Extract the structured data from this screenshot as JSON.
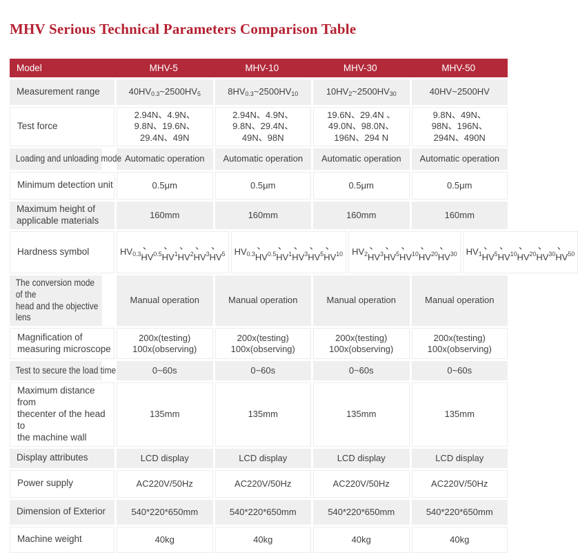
{
  "title": "MHV Serious Technical Parameters Comparison Table",
  "colors": {
    "title_red": "#b51f30",
    "header_red": "#b22a3a",
    "row_gray": "#efefef",
    "text": "#3f3f3f"
  },
  "table": {
    "header": [
      "Model",
      "MHV-5",
      "MHV-10",
      "MHV-30",
      "MHV-50"
    ],
    "rows": [
      {
        "label": "Measurement range",
        "values": [
          "40HV{0.3}~2500HV{5}",
          "8HV{0.3}~2500HV{10}",
          "10HV{2}~2500HV{30}",
          "40HV~2500HV"
        ]
      },
      {
        "label": "Test force",
        "values": [
          "2.94N、4.9N、\n9.8N、19.6N、\n29.4N、49N",
          "2.94N、4.9N、\n9.8N、29.4N、\n49N、98N",
          "19.6N、29.4N 、\n49.0N、98.0N、\n196N、294 N",
          "9.8N、49N、\n98N、196N、\n294N、490N"
        ]
      },
      {
        "label": "Loading and unloading mode",
        "values": [
          "Automatic operation",
          "Automatic operation",
          "Automatic operation",
          "Automatic operation"
        ]
      },
      {
        "label": "Minimum detection unit",
        "values": [
          "0.5μm",
          "0.5μm",
          "0.5μm",
          "0.5μm"
        ]
      },
      {
        "label": "Maximum height of\napplicable materials",
        "values": [
          "160mm",
          "160mm",
          "160mm",
          "160mm"
        ]
      },
      {
        "label": "Hardness symbol",
        "values": [
          "HV{0.3}、HV{0.5}、\nHV{1}、HV{2}、\nHV{3}、HV{5}",
          "HV{0.3}、HV{0.5}、\nHV{1}、HV{3}、\nHV{5}、HV{10}",
          "HV{2}、HV{3}、\nHV{5}、HV{10}、\nHV{20}、HV{30}",
          "HV{1}、HV{5}、\nHV{10}、HV{20}、\nHV{30}、HV{50}"
        ]
      },
      {
        "label": "The conversion mode of the\nhead and the objective lens",
        "values": [
          "Manual operation",
          "Manual operation",
          "Manual operation",
          "Manual operation"
        ]
      },
      {
        "label": "Magnification of\nmeasuring microscope",
        "values": [
          "200x(testing)\n100x(observing)",
          "200x(testing)\n100x(observing)",
          "200x(testing)\n100x(observing)",
          "200x(testing)\n100x(observing)"
        ]
      },
      {
        "label": "Test to secure the load time",
        "values": [
          "0~60s",
          "0~60s",
          "0~60s",
          "0~60s"
        ]
      },
      {
        "label": "Maximum distance from\nthecenter of the head to\nthe machine wall",
        "values": [
          "135mm",
          "135mm",
          "135mm",
          "135mm"
        ]
      },
      {
        "label": "Display attributes",
        "values": [
          "LCD display",
          "LCD display",
          "LCD display",
          "LCD display"
        ]
      },
      {
        "label": "Power supply",
        "values": [
          "AC220V/50Hz",
          "AC220V/50Hz",
          "AC220V/50Hz",
          "AC220V/50Hz"
        ]
      },
      {
        "label": "Dimension of Exterior",
        "values": [
          "540*220*650mm",
          "540*220*650mm",
          "540*220*650mm",
          "540*220*650mm"
        ]
      },
      {
        "label": "Machine weight",
        "values": [
          "40kg",
          "40kg",
          "40kg",
          "40kg"
        ]
      }
    ]
  }
}
